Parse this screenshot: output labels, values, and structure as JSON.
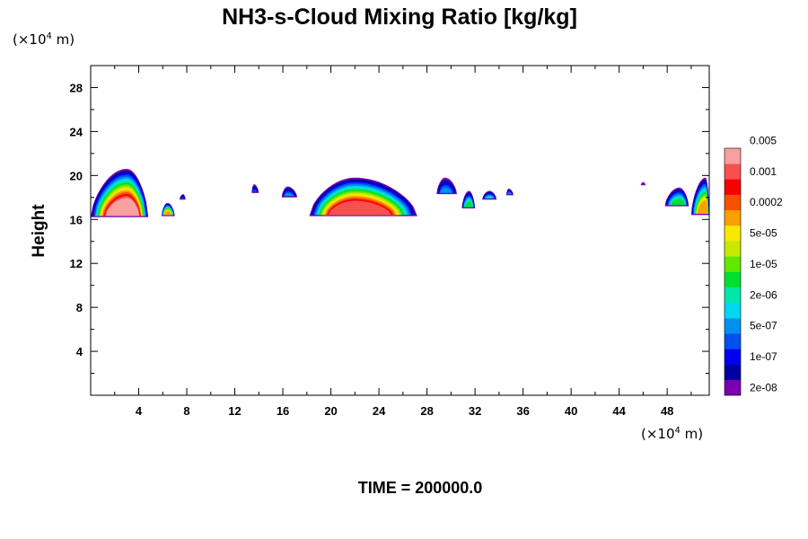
{
  "chart_data": {
    "type": "heatmap",
    "title": "NH3-s-Cloud Mixing Ratio [kg/kg]",
    "ylabel": "Height",
    "xunit_prefix": "(×10",
    "unit_exp": "4",
    "unit_suffix": " m)",
    "yunit_prefix": "(×10",
    "xlim": [
      0,
      51.5
    ],
    "ylim": [
      0,
      30
    ],
    "xticks": [
      4,
      8,
      12,
      16,
      20,
      24,
      28,
      32,
      36,
      40,
      44,
      48
    ],
    "yticks": [
      4,
      8,
      12,
      16,
      20,
      24,
      28
    ],
    "time_label": "TIME = 200000.0",
    "colorbar": {
      "colors": [
        "#7a00b0",
        "#0000a0",
        "#0000ee",
        "#0050f0",
        "#0090f0",
        "#00d8f0",
        "#00e8a8",
        "#00e030",
        "#60e800",
        "#c8e800",
        "#f8e800",
        "#f8a000",
        "#f85000",
        "#f80000",
        "#f85050",
        "#f8a0a0"
      ],
      "labels": [
        "2e-08",
        "1e-07",
        "5e-07",
        "2e-06",
        "1e-05",
        "5e-05",
        "0.0002",
        "0.001",
        "0.005"
      ],
      "label_levels": [
        1,
        3,
        5,
        7,
        9,
        11,
        13,
        15,
        17
      ]
    },
    "clouds": [
      {
        "x0": 0,
        "x1": 4.8,
        "base": 16.2,
        "top": 20.6,
        "peak": 3.0,
        "max_level": 15
      },
      {
        "x0": 5.9,
        "x1": 7.0,
        "base": 16.3,
        "top": 17.5,
        "peak": 6.4,
        "max_level": 11
      },
      {
        "x0": 7.4,
        "x1": 7.9,
        "base": 17.8,
        "top": 18.3,
        "peak": 7.7,
        "max_level": 3
      },
      {
        "x0": 13.4,
        "x1": 14.0,
        "base": 18.4,
        "top": 19.2,
        "peak": 13.6,
        "max_level": 3
      },
      {
        "x0": 15.9,
        "x1": 17.2,
        "base": 18.0,
        "top": 19.0,
        "peak": 16.4,
        "max_level": 4
      },
      {
        "x0": 18.2,
        "x1": 27.2,
        "base": 16.3,
        "top": 19.8,
        "peak": 22.0,
        "max_level": 14
      },
      {
        "x0": 28.8,
        "x1": 30.5,
        "base": 18.3,
        "top": 19.8,
        "peak": 29.5,
        "max_level": 4
      },
      {
        "x0": 30.9,
        "x1": 32.0,
        "base": 17.0,
        "top": 18.6,
        "peak": 31.5,
        "max_level": 7
      },
      {
        "x0": 32.6,
        "x1": 33.8,
        "base": 17.8,
        "top": 18.6,
        "peak": 33.2,
        "max_level": 5
      },
      {
        "x0": 34.6,
        "x1": 35.2,
        "base": 18.2,
        "top": 18.8,
        "peak": 34.8,
        "max_level": 4
      },
      {
        "x0": 45.8,
        "x1": 46.2,
        "base": 19.1,
        "top": 19.4,
        "peak": 46.0,
        "max_level": 1
      },
      {
        "x0": 47.8,
        "x1": 49.8,
        "base": 17.2,
        "top": 18.9,
        "peak": 49.0,
        "max_level": 7
      },
      {
        "x0": 50.0,
        "x1": 51.5,
        "base": 16.4,
        "top": 19.8,
        "peak": 51.2,
        "max_level": 11
      }
    ]
  }
}
